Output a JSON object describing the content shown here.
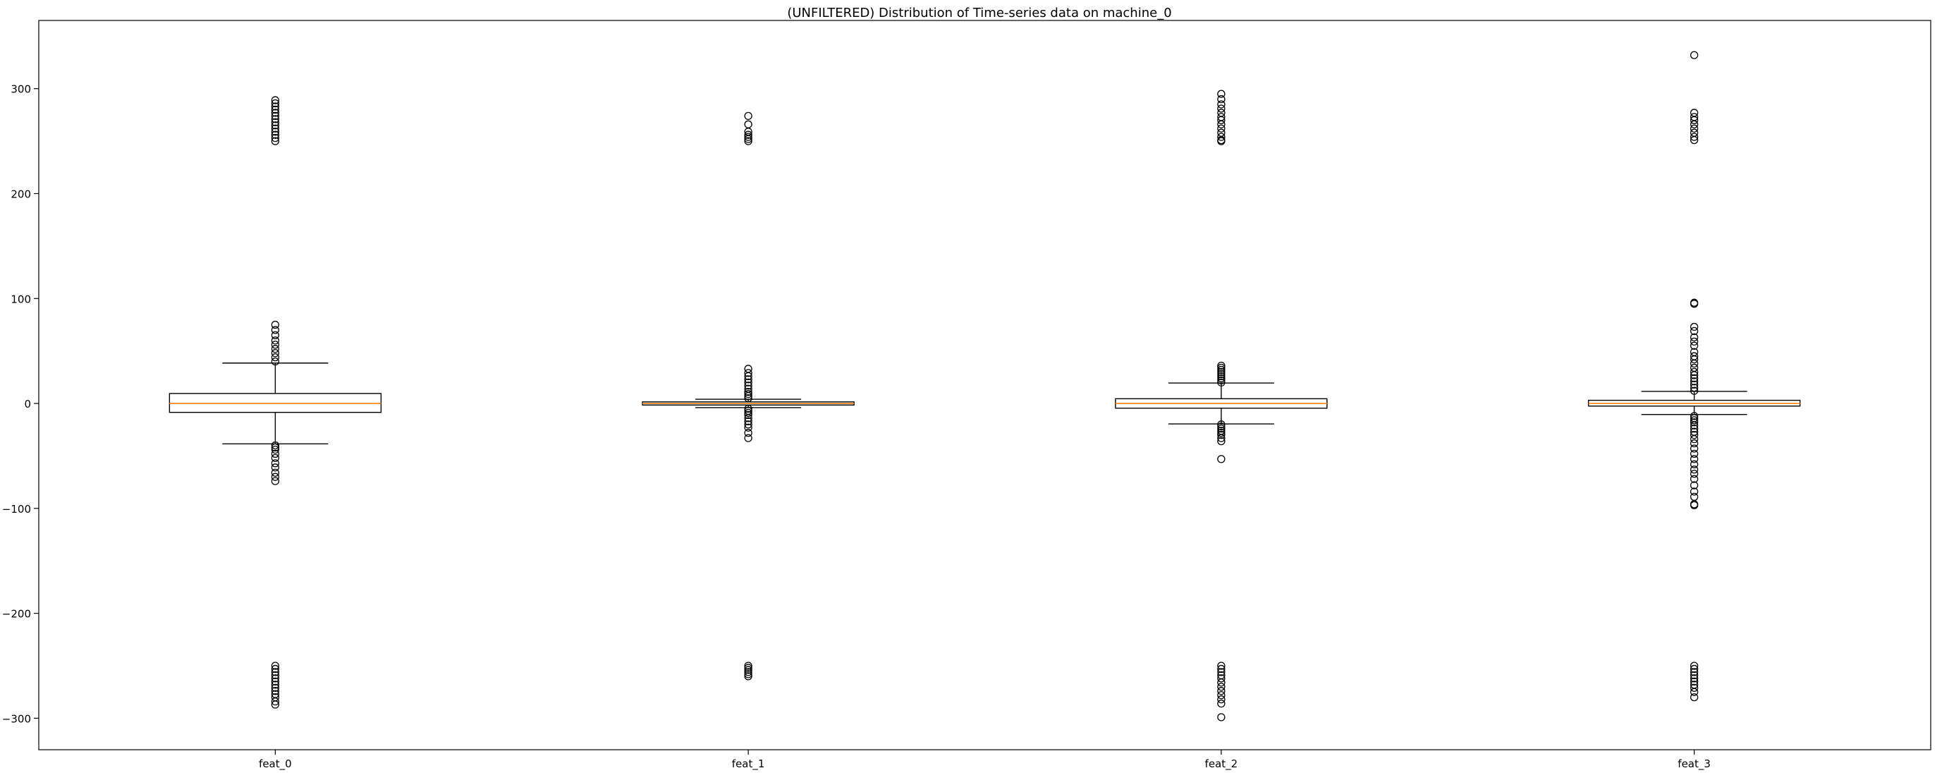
{
  "chart_data": {
    "type": "box",
    "title": "(UNFILTERED) Distribution of Time-series data on machine_0",
    "xlabel": "",
    "ylabel": "",
    "ylim": [
      -330,
      365
    ],
    "yticks": [
      300,
      200,
      100,
      0,
      -100,
      -200,
      -300
    ],
    "ytick_labels": [
      "300",
      "200",
      "100",
      "0",
      "−100",
      "−200",
      "−300"
    ],
    "grid": false,
    "colors": {
      "box_edge": "#000000",
      "median": "#ff7f0e",
      "flier": "#000000",
      "background": "#ffffff"
    },
    "categories": [
      "feat_0",
      "feat_1",
      "feat_2",
      "feat_3"
    ],
    "boxes": [
      {
        "name": "feat_0",
        "whisker_low": -38.5,
        "q1": -8.5,
        "median": 0,
        "q3": 9.5,
        "whisker_high": 38.5,
        "fliers": [
          289,
          286,
          283,
          280,
          277,
          274,
          271,
          268,
          265,
          262,
          259,
          256,
          253,
          250,
          75,
          70,
          65,
          60,
          56,
          52,
          48,
          44,
          40,
          -40,
          -42,
          -44,
          -48,
          -52,
          -57,
          -61,
          -66,
          -70,
          -74,
          -250,
          -253,
          -256,
          -259,
          -262,
          -265,
          -268,
          -271,
          -274,
          -277,
          -280,
          -284,
          -287
        ]
      },
      {
        "name": "feat_1",
        "whisker_low": -4,
        "q1": -1.5,
        "median": 0,
        "q3": 1.5,
        "whisker_high": 4,
        "fliers": [
          274,
          266,
          259,
          256,
          254,
          252,
          250,
          33,
          29,
          26,
          23,
          20,
          17,
          14,
          11,
          9,
          7,
          5,
          -5,
          -7,
          -9,
          -11,
          -14,
          -17,
          -20,
          -23,
          -28,
          -33,
          -250,
          -252,
          -254,
          -256,
          -258,
          -260
        ]
      },
      {
        "name": "feat_2",
        "whisker_low": -19.5,
        "q1": -4.5,
        "median": 0,
        "q3": 4.5,
        "whisker_high": 19.5,
        "fliers": [
          295,
          290,
          285,
          281,
          277,
          273,
          270,
          266,
          262,
          258,
          254,
          251,
          250,
          36,
          34,
          32,
          30,
          28,
          26,
          24,
          22,
          20,
          -20,
          -22,
          -24,
          -26,
          -28,
          -30,
          -33,
          -36,
          -53,
          -250,
          -253,
          -256,
          -259,
          -262,
          -266,
          -270,
          -274,
          -278,
          -282,
          -286,
          -299
        ]
      },
      {
        "name": "feat_3",
        "whisker_low": -10.5,
        "q1": -2.5,
        "median": 0,
        "q3": 3,
        "whisker_high": 11.5,
        "fliers": [
          332,
          277,
          273,
          270,
          266,
          262,
          258,
          254,
          251,
          96,
          95,
          73,
          69,
          63,
          59,
          55,
          49,
          45,
          42,
          38,
          34,
          30,
          27,
          24,
          21,
          18,
          15,
          12,
          -12,
          -14,
          -16,
          -18,
          -21,
          -24,
          -27,
          -30,
          -34,
          -38,
          -43,
          -48,
          -53,
          -58,
          -63,
          -67,
          -72,
          -78,
          -84,
          -89,
          -96,
          -97,
          -250,
          -253,
          -256,
          -259,
          -262,
          -265,
          -268,
          -271,
          -275,
          -280
        ]
      }
    ]
  }
}
